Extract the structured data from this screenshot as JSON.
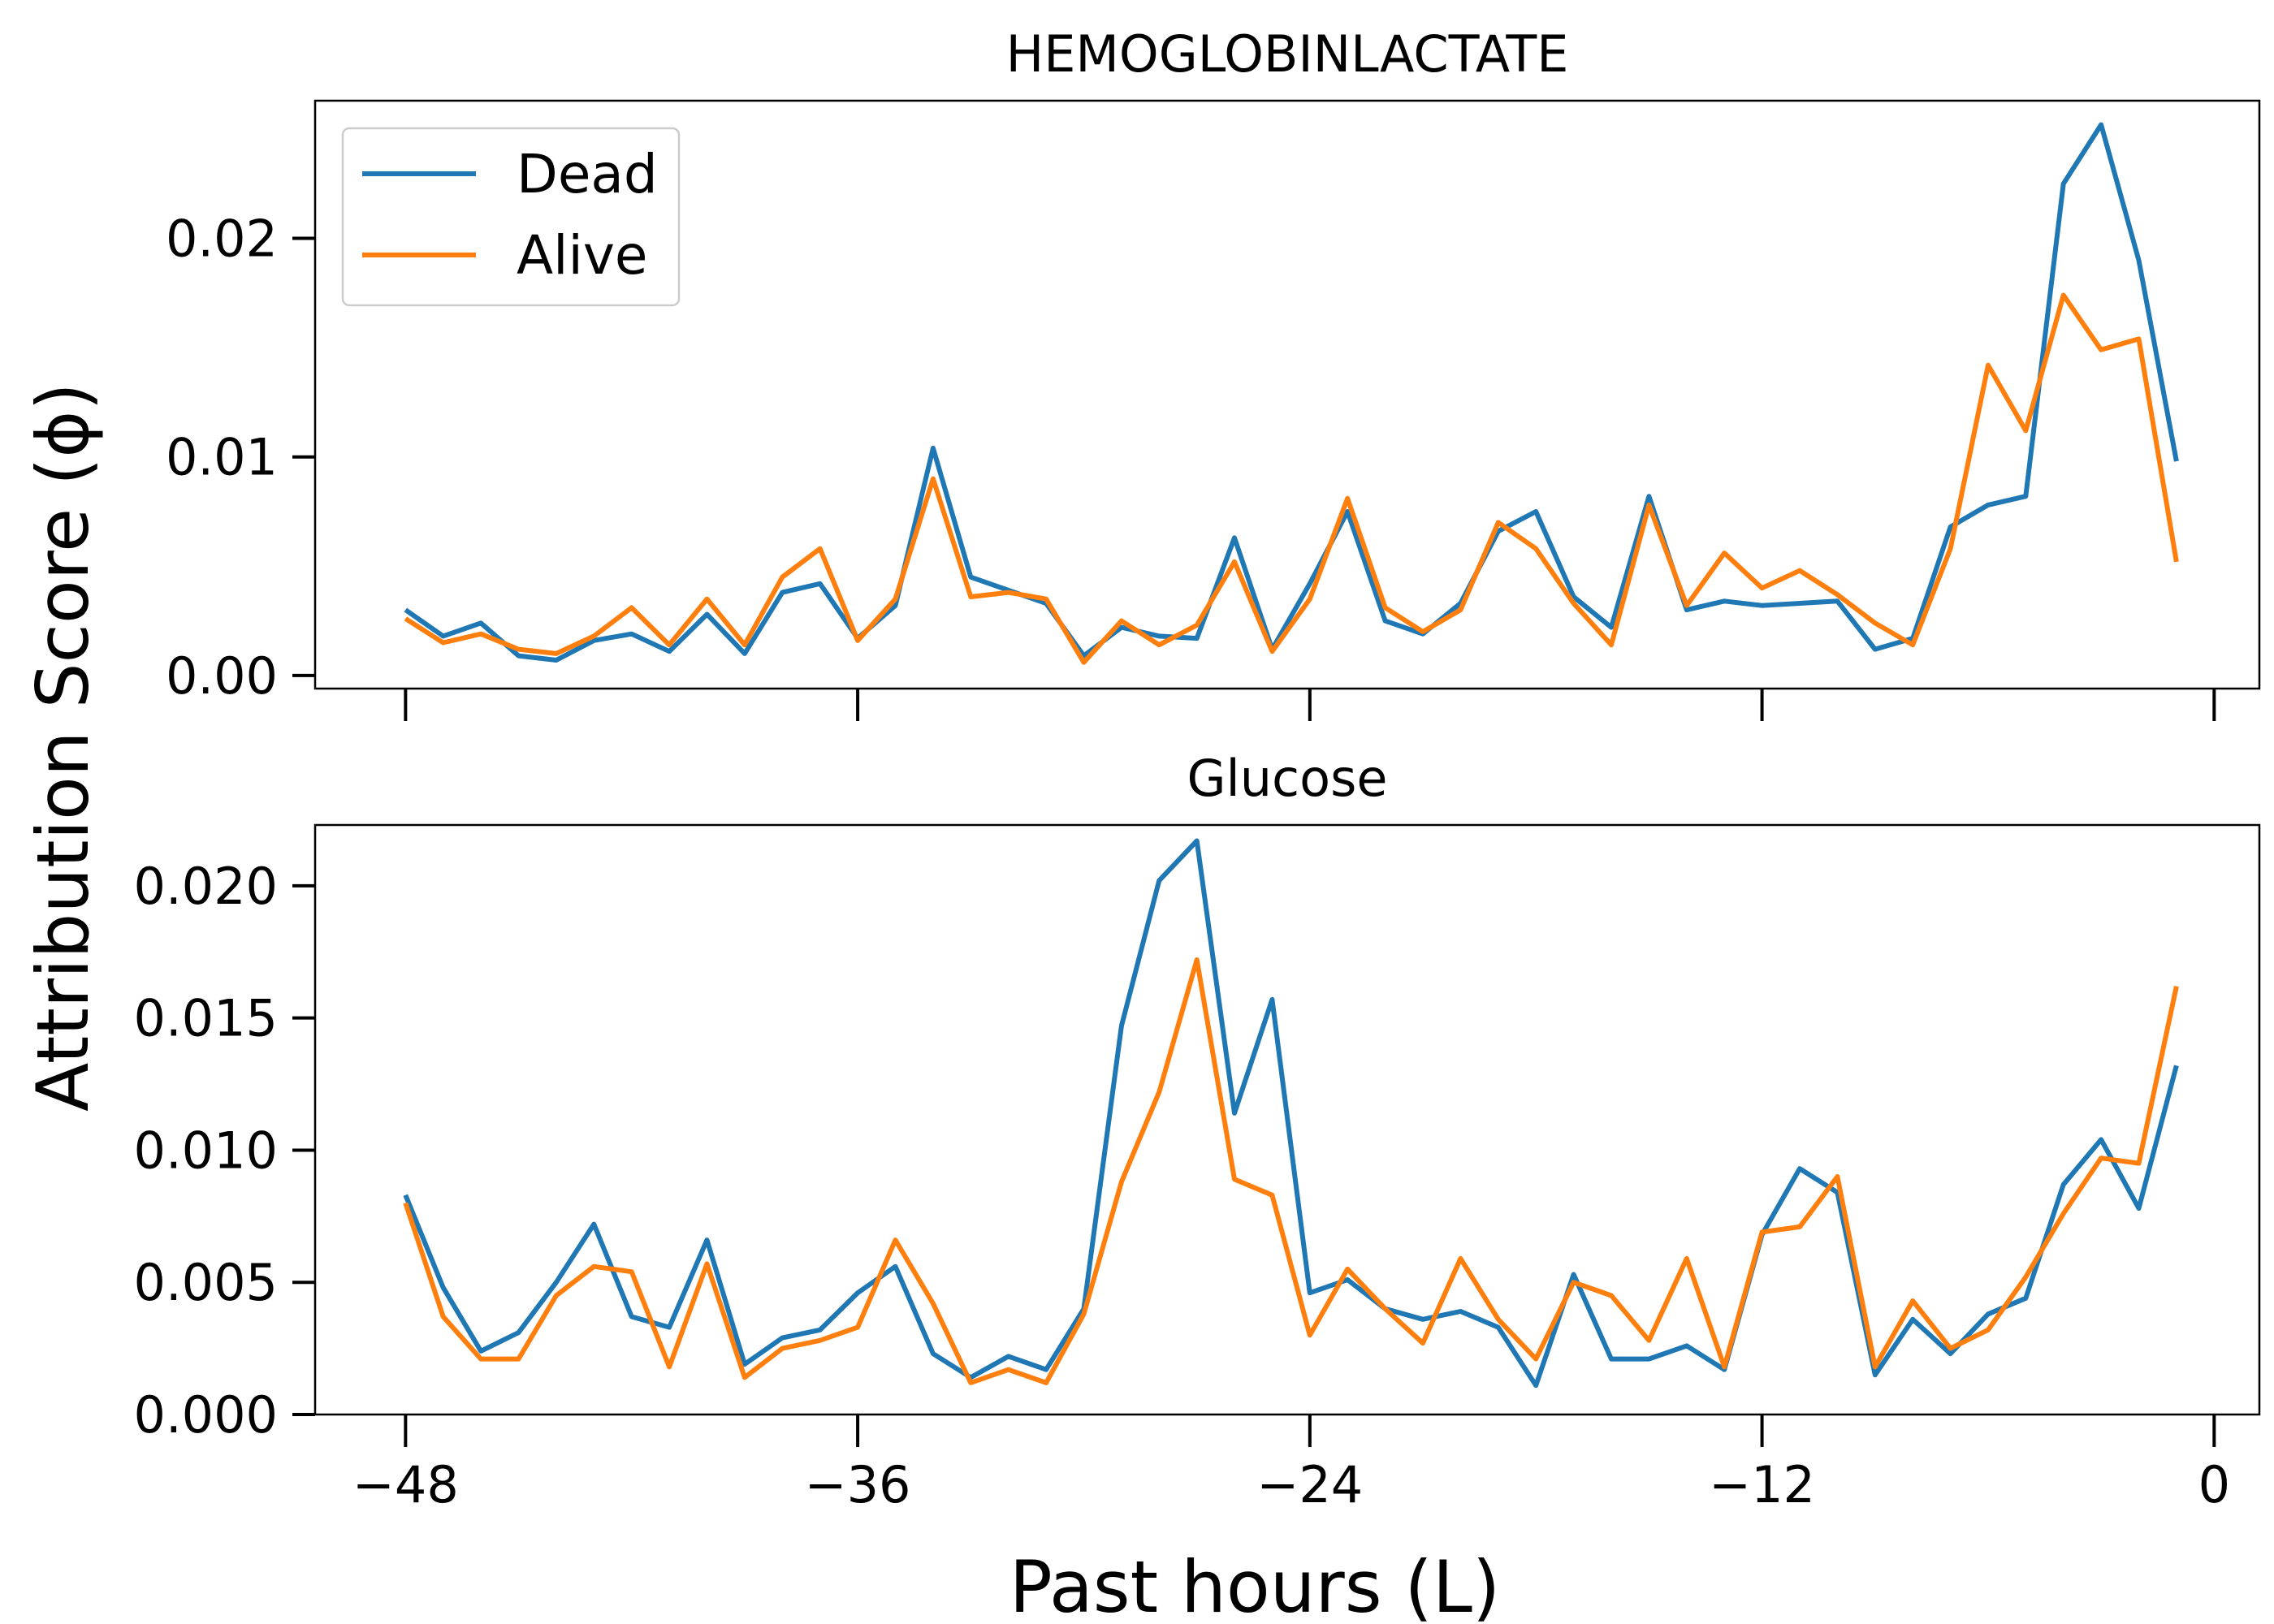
{
  "figure": {
    "ylabel": "Attribution Score (ϕ)",
    "xlabel": "Past hours (L)"
  },
  "colors": {
    "dead": "#1f77b4",
    "alive": "#ff7f0e"
  },
  "chart_data": [
    {
      "type": "line",
      "title": "HEMOGLOBINLACTATE",
      "xlabel": "",
      "ylabel": "Attribution Score (ϕ)",
      "xlim": [
        -50.4,
        1.2
      ],
      "ylim": [
        -0.0006,
        0.0263
      ],
      "xticks": [
        -48,
        -36,
        -24,
        -12,
        0
      ],
      "xtick_labels_shown": false,
      "yticks": [
        0.0,
        0.01,
        0.02
      ],
      "ytick_labels": [
        "0.00",
        "0.01",
        "0.02"
      ],
      "legend": {
        "position": "upper left",
        "entries": [
          "Dead",
          "Alive"
        ]
      },
      "x": [
        -48,
        -47,
        -46,
        -45,
        -44,
        -43,
        -42,
        -41,
        -40,
        -39,
        -38,
        -37,
        -36,
        -35,
        -34,
        -33,
        -32,
        -31,
        -30,
        -29,
        -28,
        -27,
        -26,
        -25,
        -24,
        -23,
        -22,
        -21,
        -20,
        -19,
        -18,
        -17,
        -16,
        -15,
        -14,
        -13,
        -12,
        -11,
        -10,
        -9,
        -8,
        -7,
        -6,
        -5,
        -4,
        -3,
        -2,
        -1
      ],
      "series": [
        {
          "name": "Dead",
          "color": "#1f77b4",
          "values": [
            0.003,
            0.0018,
            0.0024,
            0.0009,
            0.0007,
            0.0016,
            0.0019,
            0.0011,
            0.0028,
            0.001,
            0.0038,
            0.0042,
            0.0017,
            0.0032,
            0.0104,
            0.0045,
            0.0039,
            0.0033,
            0.0009,
            0.0022,
            0.0018,
            0.0017,
            0.0063,
            0.0012,
            0.0042,
            0.0075,
            0.0025,
            0.0019,
            0.0033,
            0.0066,
            0.0075,
            0.0036,
            0.0022,
            0.0082,
            0.003,
            0.0034,
            0.0032,
            0.0033,
            0.0034,
            0.0012,
            0.0017,
            0.0068,
            0.0078,
            0.0082,
            0.0225,
            0.0252,
            0.019,
            0.0098
          ]
        },
        {
          "name": "Alive",
          "color": "#ff7f0e",
          "values": [
            0.0026,
            0.0015,
            0.0019,
            0.0012,
            0.001,
            0.0018,
            0.0031,
            0.0014,
            0.0035,
            0.0014,
            0.0045,
            0.0058,
            0.0016,
            0.0035,
            0.009,
            0.0036,
            0.0038,
            0.0035,
            0.0006,
            0.0025,
            0.0014,
            0.0023,
            0.0052,
            0.0011,
            0.0035,
            0.0081,
            0.0031,
            0.002,
            0.003,
            0.007,
            0.0058,
            0.0033,
            0.0014,
            0.0078,
            0.0032,
            0.0056,
            0.004,
            0.0048,
            0.0037,
            0.0024,
            0.0014,
            0.0058,
            0.0142,
            0.0112,
            0.0174,
            0.0149,
            0.0154,
            0.0052
          ]
        }
      ]
    },
    {
      "type": "line",
      "title": "Glucose",
      "xlabel": "Past hours (L)",
      "ylabel": "Attribution Score (ϕ)",
      "xlim": [
        -50.4,
        1.2
      ],
      "ylim": [
        0.0,
        0.0223
      ],
      "xticks": [
        -48,
        -36,
        -24,
        -12,
        0
      ],
      "xtick_labels": [
        "−48",
        "−36",
        "−24",
        "−12",
        "0"
      ],
      "yticks": [
        0.0,
        0.005,
        0.01,
        0.015,
        0.02
      ],
      "ytick_labels": [
        "0.000",
        "0.005",
        "0.010",
        "0.015",
        "0.020"
      ],
      "x": [
        -48,
        -47,
        -46,
        -45,
        -44,
        -43,
        -42,
        -41,
        -40,
        -39,
        -38,
        -37,
        -36,
        -35,
        -34,
        -33,
        -32,
        -31,
        -30,
        -29,
        -28,
        -27,
        -26,
        -25,
        -24,
        -23,
        -22,
        -21,
        -20,
        -19,
        -18,
        -17,
        -16,
        -15,
        -14,
        -13,
        -12,
        -11,
        -10,
        -9,
        -8,
        -7,
        -6,
        -5,
        -4,
        -3,
        -2,
        -1
      ],
      "series": [
        {
          "name": "Dead",
          "color": "#1f77b4",
          "values": [
            0.0083,
            0.0048,
            0.0024,
            0.0031,
            0.005,
            0.0072,
            0.0037,
            0.0033,
            0.0066,
            0.0019,
            0.0029,
            0.0032,
            0.0046,
            0.0056,
            0.0023,
            0.0014,
            0.0022,
            0.0017,
            0.004,
            0.0147,
            0.0202,
            0.0217,
            0.0114,
            0.0157,
            0.0046,
            0.0051,
            0.004,
            0.0036,
            0.0039,
            0.0033,
            0.0011,
            0.0053,
            0.0021,
            0.0021,
            0.0026,
            0.0017,
            0.0068,
            0.0093,
            0.0084,
            0.0015,
            0.0036,
            0.0023,
            0.0038,
            0.0044,
            0.0087,
            0.0104,
            0.0078,
            0.0132
          ]
        },
        {
          "name": "Alive",
          "color": "#ff7f0e",
          "values": [
            0.008,
            0.0037,
            0.0021,
            0.0021,
            0.0045,
            0.0056,
            0.0054,
            0.0018,
            0.0057,
            0.0014,
            0.0025,
            0.0028,
            0.0033,
            0.0066,
            0.0042,
            0.0012,
            0.0017,
            0.0012,
            0.0038,
            0.0088,
            0.0122,
            0.0172,
            0.0089,
            0.0083,
            0.003,
            0.0055,
            0.004,
            0.0027,
            0.0059,
            0.0036,
            0.0021,
            0.005,
            0.0045,
            0.0028,
            0.0059,
            0.0018,
            0.0069,
            0.0071,
            0.009,
            0.0018,
            0.0043,
            0.0025,
            0.0032,
            0.0052,
            0.0076,
            0.0097,
            0.0095,
            0.0162
          ]
        }
      ]
    }
  ]
}
